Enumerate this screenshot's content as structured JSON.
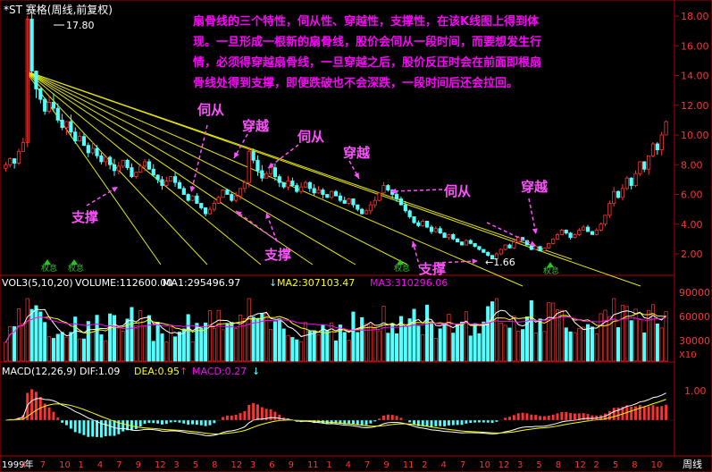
{
  "title": "*ST 赛格(周线,前复权)",
  "peak_label": "17.80",
  "low_label": "←1.66",
  "annotation_text": [
    "扇骨线的三个特性，伺从性、穿越性，支撑性，在该K线图上得到体",
    "现。一旦形成一根新的扇骨线，股价会伺从一段时间，而要想发生行",
    "情，必须得穿越扇骨线，一旦穿越之后，股价反压时会在前面即根扇",
    "骨线处得到支撑，即便跌破也不会深跌，一段时间后还会拉回。"
  ],
  "labels": {
    "support1": "支撑",
    "follow1": "伺从",
    "cross1": "穿越",
    "follow2": "伺从",
    "cross2": "穿越",
    "support2": "支撑",
    "support3": "支撑",
    "follow3": "伺从",
    "cross3": "穿越"
  },
  "weight_marks": [
    "权息",
    "权息",
    "权息",
    "权息"
  ],
  "volume_header": {
    "name": "VOL3(5,10,20)",
    "volume": "VOLUME:112600.00",
    "ma1": "MA1:295496.97",
    "ma2": "MA2:307103.47",
    "ma3": "MA3:310296.06"
  },
  "macd_header": {
    "name": "MACD(12,26,9)",
    "dif": "DIF:1.09",
    "dea": "DEA:0.95",
    "macd": "MACD:0.27"
  },
  "price_axis": [
    "18.00",
    "16.00",
    "14.00",
    "12.00",
    "10.00",
    "8.00",
    "6.00",
    "4.00",
    "2.00"
  ],
  "volume_axis": [
    "90000",
    "60000",
    "30000",
    "X10"
  ],
  "macd_axis": [
    "1.00"
  ],
  "time_axis": [
    "1999年",
    "4",
    "7",
    "10",
    "1",
    "4",
    "7",
    "9",
    "12",
    "3",
    "5",
    "8",
    "12",
    "3",
    "6",
    "9",
    "11",
    "1",
    "4",
    "7",
    "9",
    "11",
    "2",
    "4",
    "7",
    "10",
    "12",
    "3",
    "5",
    "8",
    "12",
    "2",
    "5",
    "8",
    "10"
  ],
  "period_label": "周线",
  "colors": {
    "up": "#ff3232",
    "down": "#54ffff",
    "fan": "#e6e600",
    "annot_text": "#ff00ff",
    "annot_label": "#ff50ff",
    "axis": "#b00000",
    "ma1": "#ffffff",
    "ma2": "#ffff00",
    "ma3": "#ff00ff"
  },
  "chart_data": {
    "type": "candlestick",
    "price_range": [
      1.0,
      18.5
    ],
    "peak": 17.8,
    "low": 1.66,
    "fan_origin_price": 14.3,
    "fan_end_prices": [
      1.8,
      1.7,
      1.6,
      1.5,
      1.4,
      1.3,
      1.3,
      1.6
    ],
    "candles_closes": [
      8,
      8.4,
      8.1,
      8.9,
      9.5,
      17.8,
      14.3,
      13.1,
      12.4,
      11.6,
      12.2,
      11.8,
      11.0,
      10.5,
      10.9,
      10.2,
      9.6,
      9.9,
      9.3,
      8.8,
      9.1,
      8.6,
      8.2,
      8.5,
      8.0,
      7.6,
      7.9,
      8.3,
      7.8,
      7.2,
      7.5,
      7.9,
      8.2,
      7.7,
      7.3,
      7.0,
      6.6,
      6.9,
      7.2,
      6.8,
      6.4,
      6.0,
      5.6,
      5.9,
      5.4,
      5.1,
      4.7,
      5.0,
      5.4,
      5.8,
      6.3,
      6.0,
      5.6,
      5.9,
      6.4,
      6.8,
      8.9,
      8.3,
      7.6,
      7.1,
      7.4,
      7.8,
      7.2,
      6.8,
      6.5,
      6.9,
      6.6,
      6.2,
      6.5,
      6.8,
      6.4,
      6.1,
      6.3,
      6.0,
      5.8,
      6.2,
      5.9,
      5.6,
      5.4,
      5.7,
      5.3,
      5.0,
      4.7,
      4.9,
      5.3,
      5.6,
      6.1,
      6.6,
      6.3,
      6.0,
      5.7,
      5.3,
      4.9,
      4.5,
      4.1,
      3.9,
      4.2,
      3.8,
      3.5,
      3.7,
      3.4,
      3.1,
      3.3,
      3.0,
      2.8,
      2.6,
      2.9,
      2.7,
      2.5,
      2.3,
      2.1,
      1.9,
      1.66,
      2.0,
      2.3,
      2.6,
      2.4,
      2.8,
      3.1,
      2.9,
      2.6,
      2.3,
      2.5,
      2.2,
      2.4,
      2.7,
      3.0,
      3.3,
      3.6,
      3.4,
      3.1,
      3.3,
      3.6,
      3.8,
      3.5,
      3.3,
      3.6,
      4.0,
      4.6,
      5.4,
      6.2,
      5.8,
      6.4,
      7.1,
      6.6,
      7.4,
      8.2,
      7.7,
      8.6,
      9.4,
      9.0,
      10.0,
      10.9
    ]
  }
}
